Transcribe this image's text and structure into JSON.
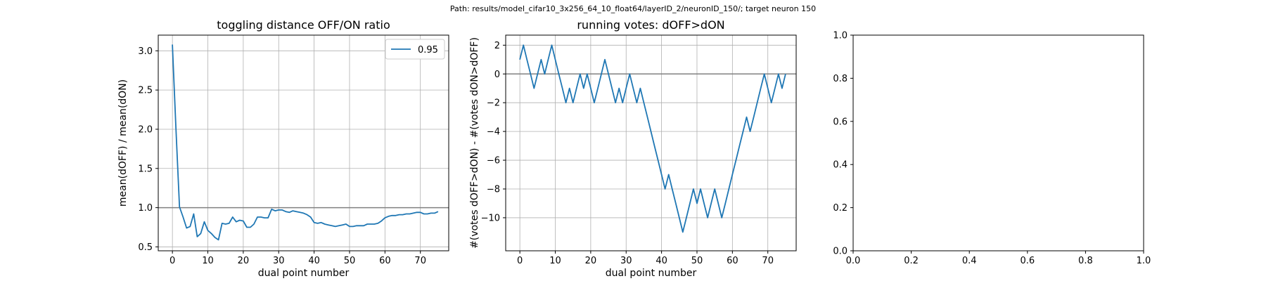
{
  "suptitle": "Path: results/model_cifar10_3x256_64_10_float64/layerID_2/neuronID_150/; target neuron 150",
  "chart_data": [
    {
      "type": "line",
      "title": "toggling distance OFF/ON ratio",
      "xlabel": "dual point number",
      "ylabel": "mean(dOFF) / mean(dON)",
      "xlim": [
        -4,
        78
      ],
      "ylim": [
        0.45,
        3.2
      ],
      "xticks": [
        0,
        10,
        20,
        30,
        40,
        50,
        60,
        70
      ],
      "yticks": [
        0.5,
        1.0,
        1.5,
        2.0,
        2.5,
        3.0
      ],
      "ytick_labels": [
        "0.5",
        "1.0",
        "1.5",
        "2.0",
        "2.5",
        "3.0"
      ],
      "grid": true,
      "hline": 1.0,
      "legend": {
        "placement": "top-right",
        "entries": [
          "0.95"
        ]
      },
      "series": [
        {
          "name": "0.95",
          "color": "#1f77b4",
          "x": [
            0,
            1,
            2,
            3,
            4,
            5,
            6,
            7,
            8,
            9,
            10,
            11,
            12,
            13,
            14,
            15,
            16,
            17,
            18,
            19,
            20,
            21,
            22,
            23,
            24,
            25,
            26,
            27,
            28,
            29,
            30,
            31,
            32,
            33,
            34,
            35,
            36,
            37,
            38,
            39,
            40,
            41,
            42,
            43,
            44,
            45,
            46,
            47,
            48,
            49,
            50,
            51,
            52,
            53,
            54,
            55,
            56,
            57,
            58,
            59,
            60,
            61,
            62,
            63,
            64,
            65,
            66,
            67,
            68,
            69,
            70,
            71,
            72,
            73,
            74,
            75
          ],
          "y": [
            3.08,
            2.0,
            1.01,
            0.88,
            0.74,
            0.76,
            0.92,
            0.63,
            0.67,
            0.82,
            0.71,
            0.67,
            0.62,
            0.59,
            0.8,
            0.79,
            0.8,
            0.88,
            0.82,
            0.84,
            0.83,
            0.75,
            0.75,
            0.79,
            0.88,
            0.88,
            0.87,
            0.87,
            0.98,
            0.96,
            0.97,
            0.97,
            0.95,
            0.94,
            0.96,
            0.95,
            0.94,
            0.93,
            0.91,
            0.88,
            0.81,
            0.8,
            0.81,
            0.79,
            0.78,
            0.77,
            0.76,
            0.77,
            0.78,
            0.79,
            0.76,
            0.76,
            0.77,
            0.77,
            0.77,
            0.79,
            0.79,
            0.79,
            0.8,
            0.83,
            0.87,
            0.89,
            0.9,
            0.9,
            0.91,
            0.91,
            0.92,
            0.92,
            0.93,
            0.94,
            0.94,
            0.92,
            0.92,
            0.93,
            0.93,
            0.95
          ]
        }
      ]
    },
    {
      "type": "line",
      "title": "running votes: dOFF>dON",
      "xlabel": "dual point number",
      "ylabel": "#(votes dOFF>dON) - #(votes dON>dOFF)",
      "xlim": [
        -4,
        78
      ],
      "ylim": [
        -12.3,
        2.7
      ],
      "xticks": [
        0,
        10,
        20,
        30,
        40,
        50,
        60,
        70
      ],
      "yticks": [
        2,
        0,
        -2,
        -4,
        -6,
        -8,
        -10
      ],
      "ytick_labels": [
        "2",
        "0",
        "−2",
        "−4",
        "−6",
        "−8",
        "−10"
      ],
      "grid": true,
      "hline": 0,
      "series": [
        {
          "color": "#1f77b4",
          "x": [
            0,
            1,
            2,
            3,
            4,
            5,
            6,
            7,
            8,
            9,
            10,
            11,
            12,
            13,
            14,
            15,
            16,
            17,
            18,
            19,
            20,
            21,
            22,
            23,
            24,
            25,
            26,
            27,
            28,
            29,
            30,
            31,
            32,
            33,
            34,
            35,
            36,
            37,
            38,
            39,
            40,
            41,
            42,
            43,
            44,
            45,
            46,
            47,
            48,
            49,
            50,
            51,
            52,
            53,
            54,
            55,
            56,
            57,
            58,
            59,
            60,
            61,
            62,
            63,
            64,
            65,
            66,
            67,
            68,
            69,
            70,
            71,
            72,
            73,
            74,
            75
          ],
          "y": [
            1,
            2,
            1,
            0,
            -1,
            0,
            1,
            0,
            1,
            2,
            1,
            0,
            -1,
            -2,
            -1,
            -2,
            -1,
            0,
            -1,
            0,
            -1,
            -2,
            -1,
            0,
            1,
            0,
            -1,
            -2,
            -1,
            -2,
            -1,
            0,
            -1,
            -2,
            -1,
            -2,
            -3,
            -4,
            -5,
            -6,
            -7,
            -8,
            -7,
            -8,
            -9,
            -10,
            -11,
            -10,
            -9,
            -8,
            -9,
            -8,
            -9,
            -10,
            -9,
            -8,
            -9,
            -10,
            -9,
            -8,
            -7,
            -6,
            -5,
            -4,
            -3,
            -4,
            -3,
            -2,
            -1,
            0,
            -1,
            -2,
            -1,
            0,
            -1,
            0
          ]
        }
      ]
    },
    {
      "type": "line",
      "title": "",
      "xlabel": "",
      "ylabel": "",
      "xlim": [
        0,
        1
      ],
      "ylim": [
        0,
        1
      ],
      "xticks": [
        0,
        0.2,
        0.4,
        0.6,
        0.8,
        1.0
      ],
      "xtick_labels": [
        "0.0",
        "0.2",
        "0.4",
        "0.6",
        "0.8",
        "1.0"
      ],
      "yticks": [
        0,
        0.2,
        0.4,
        0.6,
        0.8,
        1.0
      ],
      "ytick_labels": [
        "0.0",
        "0.2",
        "0.4",
        "0.6",
        "0.8",
        "1.0"
      ],
      "grid": false,
      "series": []
    }
  ]
}
